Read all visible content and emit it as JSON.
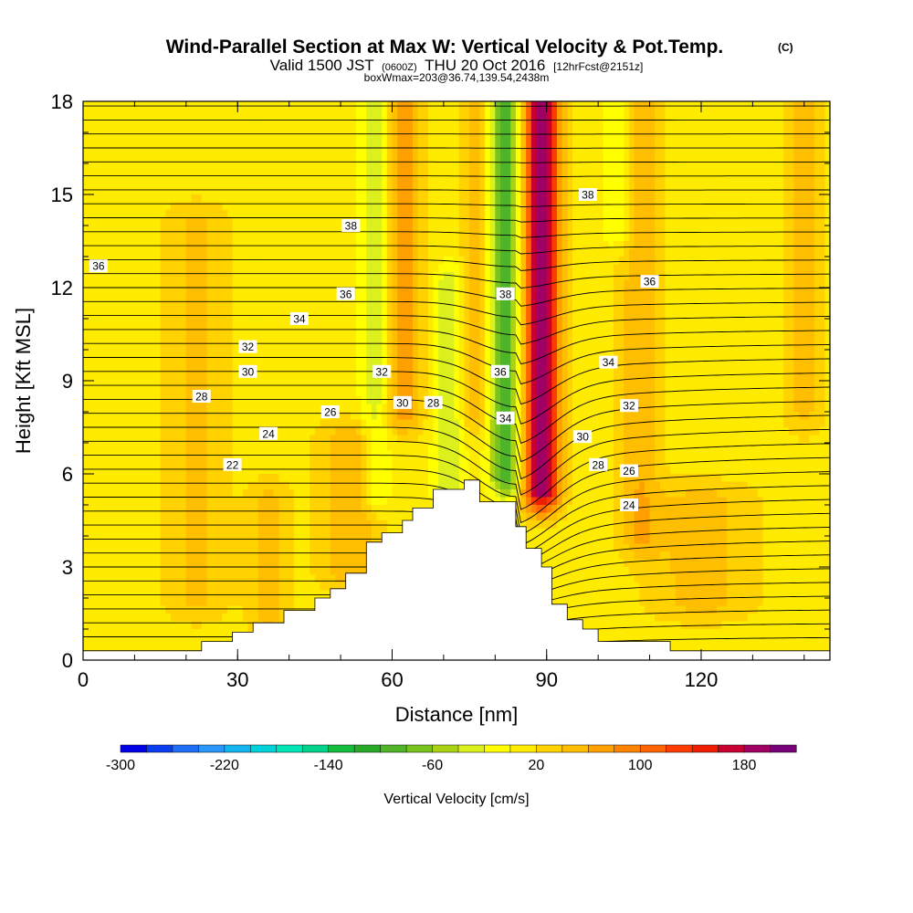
{
  "title": {
    "main": "Wind-Parallel Section at Max W: Vertical Velocity & Pot.Temp.",
    "copyright": "(C)",
    "valid_prefix": "Valid 1500 JST",
    "valid_utc": "(0600Z)",
    "valid_date": "THU 20 Oct 2016",
    "forecast": "[12hrFcst@2151z]",
    "box_info": "boxWmax=203@36.74,139.54,2438m"
  },
  "chart_data": {
    "type": "heatmap",
    "xlabel": "Distance [nm]",
    "ylabel": "Height [Kft MSL]",
    "xlim": [
      0,
      145
    ],
    "ylim": [
      0,
      18
    ],
    "x_ticks": [
      "0",
      "30",
      "60",
      "90",
      "120"
    ],
    "y_ticks": [
      "0",
      "3",
      "6",
      "9",
      "12",
      "15",
      "18"
    ],
    "colorbar": {
      "label": "Vertical Velocity [cm/s]",
      "tick_labels": [
        "-300",
        "-220",
        "-140",
        "-60",
        "20",
        "100",
        "180"
      ],
      "tick_values": [
        -300,
        -220,
        -140,
        -60,
        20,
        100,
        180
      ],
      "vmin": -300,
      "vmax": 220,
      "step": 20,
      "colors": [
        "#0000e6",
        "#0a3cf0",
        "#1e6ef5",
        "#2896fa",
        "#14b4f0",
        "#00d2dc",
        "#00e6b4",
        "#00d28c",
        "#14be3c",
        "#28aa28",
        "#50b428",
        "#78c31e",
        "#aad214",
        "#dcf01e",
        "#ffff00",
        "#ffeb00",
        "#ffd200",
        "#ffbe00",
        "#ffa000",
        "#ff8200",
        "#ff6400",
        "#ff3c00",
        "#f01e00",
        "#c80032",
        "#a00064",
        "#780078"
      ]
    },
    "terrain": {
      "x": [
        0,
        23,
        23,
        29,
        29,
        33,
        33,
        39,
        39,
        45,
        45,
        48,
        48,
        51,
        51,
        55,
        55,
        58,
        58,
        62,
        62,
        64,
        64,
        68,
        68,
        74,
        74,
        77,
        77,
        84,
        84,
        86,
        86,
        89,
        89,
        91,
        91,
        94,
        94,
        97,
        97,
        100,
        100,
        106,
        106,
        114,
        114,
        129,
        129,
        145
      ],
      "y": [
        0.3,
        0.3,
        0.6,
        0.6,
        0.9,
        0.9,
        1.2,
        1.2,
        1.6,
        1.6,
        2.0,
        2.0,
        2.3,
        2.3,
        2.8,
        2.8,
        3.8,
        3.8,
        4.1,
        4.1,
        4.5,
        4.5,
        4.9,
        4.9,
        5.5,
        5.5,
        5.8,
        5.8,
        5.1,
        5.1,
        4.3,
        4.3,
        3.6,
        3.6,
        3.0,
        3.0,
        1.8,
        1.8,
        1.3,
        1.3,
        1.0,
        1.0,
        0.6,
        0.6,
        0.6,
        0.6,
        0.3,
        0.3,
        0.3,
        0.3
      ]
    },
    "velocity_field": {
      "background": 10,
      "features": [
        {
          "x": 57,
          "y0": 5.5,
          "y1": 18,
          "value": -50,
          "width": 3
        },
        {
          "x": 62,
          "y0": 8,
          "y1": 18,
          "value": 60,
          "width": 4
        },
        {
          "x": 71,
          "y0": 5.5,
          "y1": 12,
          "value": -45,
          "width": 3
        },
        {
          "x": 76,
          "y0": 8,
          "y1": 18,
          "value": 40,
          "width": 2.5
        },
        {
          "x": 82,
          "y0": 6,
          "y1": 18,
          "value": -110,
          "width": 3
        },
        {
          "x": 89,
          "y0": 5.5,
          "y1": 18,
          "value": 190,
          "width": 3.5
        },
        {
          "x": 104,
          "y0": 14,
          "y1": 18,
          "value": -40,
          "width": 3
        },
        {
          "x": 108,
          "y0": 4,
          "y1": 18,
          "value": 45,
          "width": 4
        },
        {
          "x": 140,
          "y0": 8,
          "y1": 18,
          "value": 35,
          "width": 4
        },
        {
          "x": 22,
          "y0": 2,
          "y1": 14,
          "value": 35,
          "width": 6
        },
        {
          "x": 52,
          "y0": 3,
          "y1": 7,
          "value": 50,
          "width": 6
        },
        {
          "x": 36,
          "y0": 1.5,
          "y1": 5,
          "value": 40,
          "width": 4
        },
        {
          "x": 120,
          "y0": 2,
          "y1": 5,
          "value": 40,
          "width": 10
        }
      ]
    },
    "contour_labels": [
      {
        "text": "22",
        "x": 29,
        "y": 6.3
      },
      {
        "text": "24",
        "x": 36,
        "y": 7.3
      },
      {
        "text": "26",
        "x": 48,
        "y": 8.0
      },
      {
        "text": "28",
        "x": 23,
        "y": 8.5
      },
      {
        "text": "30",
        "x": 32,
        "y": 9.3
      },
      {
        "text": "32",
        "x": 32,
        "y": 10.1
      },
      {
        "text": "34",
        "x": 42,
        "y": 11.0
      },
      {
        "text": "36",
        "x": 51,
        "y": 11.8
      },
      {
        "text": "36",
        "x": 3,
        "y": 12.7
      },
      {
        "text": "38",
        "x": 52,
        "y": 14.0
      },
      {
        "text": "32",
        "x": 58,
        "y": 9.3
      },
      {
        "text": "30",
        "x": 62,
        "y": 8.3
      },
      {
        "text": "28",
        "x": 68,
        "y": 8.3
      },
      {
        "text": "38",
        "x": 82,
        "y": 11.8
      },
      {
        "text": "36",
        "x": 81,
        "y": 9.3
      },
      {
        "text": "34",
        "x": 82,
        "y": 7.8
      },
      {
        "text": "38",
        "x": 98,
        "y": 15.0
      },
      {
        "text": "36",
        "x": 110,
        "y": 12.2
      },
      {
        "text": "34",
        "x": 102,
        "y": 9.6
      },
      {
        "text": "32",
        "x": 106,
        "y": 8.2
      },
      {
        "text": "30",
        "x": 97,
        "y": 7.2
      },
      {
        "text": "28",
        "x": 100,
        "y": 6.3
      },
      {
        "text": "26",
        "x": 106,
        "y": 6.1
      },
      {
        "text": "24",
        "x": 106,
        "y": 5.0
      }
    ]
  }
}
